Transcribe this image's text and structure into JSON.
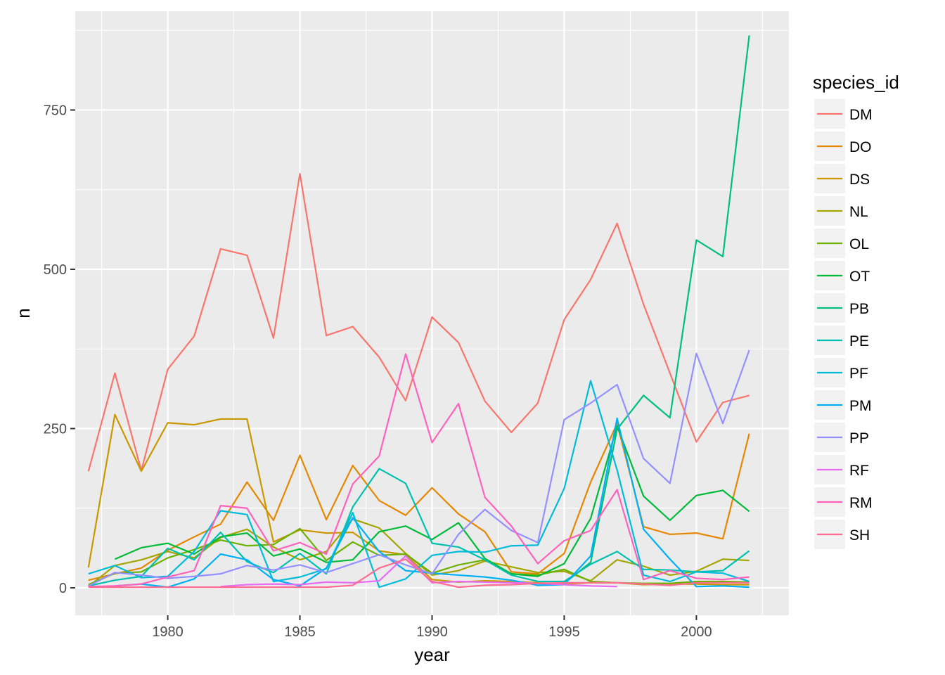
{
  "chart_data": {
    "type": "line",
    "title": "",
    "xlabel": "year",
    "ylabel": "n",
    "xlim": [
      1976.5,
      2003.5
    ],
    "ylim": [
      -43,
      905
    ],
    "x_ticks": [
      1980,
      1985,
      1990,
      1995,
      2000
    ],
    "y_ticks": [
      0,
      250,
      500,
      750
    ],
    "grid": true,
    "legend_title": "species_id",
    "legend_position": "right",
    "series": [
      {
        "name": "DM",
        "color": "#F8766D",
        "x": [
          1977,
          1978,
          1979,
          1980,
          1981,
          1982,
          1983,
          1984,
          1985,
          1986,
          1987,
          1988,
          1989,
          1990,
          1991,
          1992,
          1993,
          1994,
          1995,
          1996,
          1997,
          1998,
          1999,
          2000,
          2001,
          2002
        ],
        "values": [
          183,
          337,
          184,
          343,
          395,
          532,
          522,
          392,
          650,
          396,
          410,
          362,
          294,
          425,
          385,
          293,
          244,
          290,
          421,
          484,
          572,
          445,
          337,
          229,
          291,
          302
        ]
      },
      {
        "name": "DO",
        "color": "#E58700",
        "x": [
          1977,
          1978,
          1979,
          1980,
          1981,
          1982,
          1983,
          1984,
          1985,
          1986,
          1987,
          1988,
          1989,
          1990,
          1991,
          1992,
          1993,
          1994,
          1995,
          1996,
          1997,
          1998,
          1999,
          2000,
          2001,
          2002
        ],
        "values": [
          12,
          22,
          31,
          59,
          80,
          100,
          166,
          106,
          208,
          107,
          192,
          137,
          114,
          157,
          116,
          88,
          25,
          22,
          54,
          166,
          258,
          96,
          84,
          86,
          77,
          242
        ]
      },
      {
        "name": "DS",
        "color": "#C99800",
        "x": [
          1977,
          1978,
          1979,
          1980,
          1981,
          1982,
          1983,
          1984,
          1985,
          1986,
          1987,
          1988,
          1989,
          1990,
          1991,
          1992,
          1993,
          1994,
          1995,
          1996,
          1997,
          1998,
          1999,
          2000,
          2001,
          2002
        ],
        "values": [
          32,
          272,
          183,
          259,
          256,
          265,
          265,
          72,
          91,
          86,
          87,
          58,
          52,
          13,
          9,
          11,
          10,
          8,
          6,
          8,
          8,
          5,
          6,
          6,
          5,
          5
        ]
      },
      {
        "name": "NL",
        "color": "#A3A500",
        "x": [
          1977,
          1978,
          1979,
          1980,
          1981,
          1982,
          1983,
          1984,
          1985,
          1986,
          1987,
          1988,
          1989,
          1990,
          1991,
          1992,
          1993,
          1994,
          1995,
          1996,
          1997,
          1998,
          1999,
          2000,
          2001,
          2002
        ],
        "values": [
          2,
          35,
          44,
          57,
          47,
          79,
          92,
          64,
          44,
          57,
          108,
          94,
          54,
          20,
          27,
          42,
          33,
          24,
          26,
          11,
          44,
          34,
          20,
          26,
          45,
          43
        ]
      },
      {
        "name": "OL",
        "color": "#6BB100",
        "x": [
          1977,
          1978,
          1979,
          1980,
          1981,
          1982,
          1983,
          1984,
          1985,
          1986,
          1987,
          1988,
          1989,
          1990,
          1991,
          1992,
          1993,
          1994,
          1995,
          1996,
          1997,
          1998,
          1999,
          2000,
          2001,
          2002
        ],
        "values": [
          5,
          23,
          25,
          47,
          60,
          75,
          66,
          68,
          93,
          43,
          72,
          51,
          53,
          23,
          36,
          44,
          22,
          20,
          29,
          10,
          8,
          7,
          7,
          10,
          10,
          9
        ]
      },
      {
        "name": "OT",
        "color": "#00BA38",
        "x": [
          1978,
          1979,
          1980,
          1981,
          1982,
          1983,
          1984,
          1985,
          1986,
          1987,
          1988,
          1989,
          1990,
          1991,
          1992,
          1993,
          1994,
          1995,
          1996,
          1997,
          1998,
          1999,
          2000,
          2001,
          2002
        ],
        "values": [
          45,
          63,
          70,
          53,
          80,
          86,
          50,
          61,
          40,
          44,
          88,
          97,
          76,
          102,
          46,
          22,
          18,
          38,
          109,
          254,
          144,
          106,
          145,
          153,
          120
        ]
      },
      {
        "name": "PB",
        "color": "#00BF7D",
        "x": [
          1995,
          1996,
          1997,
          1998,
          1999,
          2000,
          2001,
          2002
        ],
        "values": [
          7,
          40,
          249,
          302,
          267,
          546,
          520,
          867
        ]
      },
      {
        "name": "PE",
        "color": "#00C0AF",
        "x": [
          1977,
          1978,
          1979,
          1980,
          1981,
          1982,
          1983,
          1984,
          1985,
          1986,
          1987,
          1988,
          1989,
          1990,
          1991,
          1992,
          1993,
          1994,
          1995,
          1996,
          1997,
          1998,
          1999,
          2000,
          2001,
          2002
        ],
        "values": [
          3,
          12,
          18,
          62,
          44,
          87,
          41,
          24,
          54,
          22,
          127,
          187,
          164,
          70,
          64,
          44,
          20,
          10,
          10,
          37,
          57,
          29,
          28,
          25,
          27,
          58
        ]
      },
      {
        "name": "PF",
        "color": "#00BCD8",
        "x": [
          1977,
          1978,
          1979,
          1980,
          1981,
          1982,
          1983,
          1984,
          1985,
          1986,
          1987,
          1988,
          1989,
          1990,
          1991,
          1992,
          1993,
          1994,
          1995,
          1996,
          1997,
          1998,
          1999,
          2000,
          2001,
          2002
        ],
        "values": [
          22,
          35,
          16,
          18,
          57,
          121,
          115,
          10,
          17,
          30,
          118,
          1,
          14,
          51,
          57,
          56,
          66,
          67,
          156,
          325,
          185,
          20,
          10,
          25,
          23,
          10
        ]
      },
      {
        "name": "PM",
        "color": "#00B0F6",
        "x": [
          1978,
          1979,
          1980,
          1981,
          1982,
          1983,
          1984,
          1985,
          1986,
          1987,
          1988,
          1989,
          1990,
          1991,
          1992,
          1993,
          1994,
          1995,
          1996,
          1997,
          1998,
          1999,
          2000,
          2001,
          2002
        ],
        "values": [
          3,
          6,
          1,
          14,
          53,
          44,
          13,
          3,
          31,
          110,
          57,
          27,
          23,
          20,
          17,
          12,
          4,
          5,
          50,
          266,
          92,
          45,
          2,
          3,
          1
        ]
      },
      {
        "name": "PP",
        "color": "#9590FF",
        "x": [
          1977,
          1978,
          1979,
          1980,
          1981,
          1982,
          1983,
          1984,
          1985,
          1986,
          1987,
          1988,
          1989,
          1990,
          1991,
          1992,
          1993,
          1994,
          1995,
          1996,
          1997,
          1998,
          1999,
          2000,
          2001,
          2002
        ],
        "values": [
          3,
          24,
          20,
          15,
          18,
          22,
          35,
          28,
          36,
          24,
          38,
          52,
          36,
          22,
          84,
          123,
          90,
          71,
          264,
          290,
          319,
          203,
          164,
          368,
          258,
          373
        ]
      },
      {
        "name": "RF",
        "color": "#E76BF3",
        "x": [
          1982,
          1983,
          1984,
          1985,
          1986,
          1987,
          1988,
          1989,
          1990,
          1991,
          1992,
          1993,
          1994,
          1995,
          1996,
          1997
        ],
        "values": [
          2,
          5,
          6,
          5,
          9,
          8,
          11,
          50,
          8,
          10,
          9,
          8,
          7,
          5,
          3,
          2
        ]
      },
      {
        "name": "RM",
        "color": "#FF62BC",
        "x": [
          1977,
          1978,
          1979,
          1980,
          1981,
          1982,
          1983,
          1984,
          1985,
          1986,
          1987,
          1988,
          1989,
          1990,
          1991,
          1992,
          1993,
          1994,
          1995,
          1996,
          1997,
          1998,
          1999,
          2000,
          2001,
          2002
        ],
        "values": [
          2,
          3,
          6,
          17,
          27,
          129,
          125,
          58,
          71,
          53,
          163,
          207,
          367,
          228,
          289,
          142,
          97,
          38,
          74,
          90,
          154,
          13,
          27,
          15,
          13,
          17
        ]
      },
      {
        "name": "SH",
        "color": "#FF6C91",
        "x": [
          1977,
          1978,
          1979,
          1980,
          1981,
          1982,
          1983,
          1984,
          1985,
          1986,
          1987,
          1988,
          1989,
          1990,
          1991,
          1992,
          1993,
          1994,
          1995,
          1996,
          1997,
          1998,
          1999,
          2000,
          2001,
          2002
        ],
        "values": [
          1,
          1,
          1,
          1,
          1,
          1,
          1,
          1,
          1,
          1,
          4,
          31,
          45,
          10,
          1,
          4,
          5,
          7,
          8,
          8,
          8,
          6,
          4,
          8,
          8,
          8
        ]
      }
    ]
  }
}
